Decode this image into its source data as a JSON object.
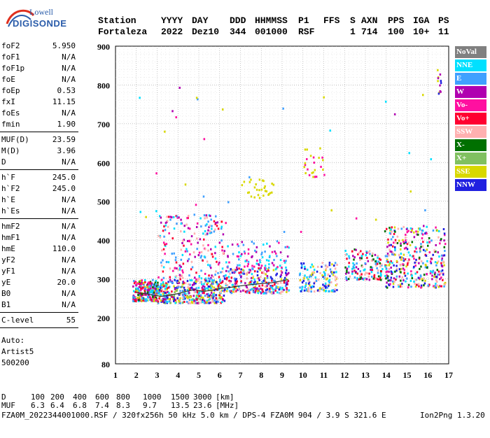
{
  "logo": {
    "line1": "Lowell",
    "line2": "DIGISONDE"
  },
  "header": {
    "labels": [
      "Station",
      "YYYY",
      "DAY",
      "DDD",
      "HHMMSS",
      "P1",
      "FFS",
      "S",
      "AXN",
      "PPS",
      "IGA",
      "PS"
    ],
    "values": [
      "Fortaleza",
      "2022",
      "Dez10",
      "344",
      "001000",
      "RSF",
      "",
      "1",
      "714",
      "100",
      "10+",
      "11"
    ]
  },
  "params_groups": [
    [
      {
        "k": "foF2",
        "v": "5.950"
      },
      {
        "k": "foF1",
        "v": "N/A"
      },
      {
        "k": "foF1p",
        "v": "N/A"
      },
      {
        "k": "foE",
        "v": "N/A"
      },
      {
        "k": "foEp",
        "v": "0.53"
      },
      {
        "k": "fxI",
        "v": "11.15"
      },
      {
        "k": "foEs",
        "v": "N/A"
      },
      {
        "k": "fmin",
        "v": "1.90"
      }
    ],
    [
      {
        "k": "MUF(D)",
        "v": "23.59"
      },
      {
        "k": "M(D)",
        "v": "3.96"
      },
      {
        "k": "D",
        "v": "N/A"
      }
    ],
    [
      {
        "k": "h`F",
        "v": "245.0"
      },
      {
        "k": "h`F2",
        "v": "245.0"
      },
      {
        "k": "h`E",
        "v": "N/A"
      },
      {
        "k": "h`Es",
        "v": "N/A"
      }
    ],
    [
      {
        "k": "hmF2",
        "v": "N/A"
      },
      {
        "k": "hmF1",
        "v": "N/A"
      },
      {
        "k": "hmE",
        "v": "110.0"
      },
      {
        "k": "yF2",
        "v": "N/A"
      },
      {
        "k": "yF1",
        "v": "N/A"
      },
      {
        "k": "yE",
        "v": "20.0"
      },
      {
        "k": "B0",
        "v": "N/A"
      },
      {
        "k": "B1",
        "v": "N/A"
      }
    ],
    [
      {
        "k": "C-level",
        "v": "55"
      }
    ]
  ],
  "auto": [
    "Auto:",
    "Artist5",
    "500200"
  ],
  "chart_data": {
    "type": "scatter",
    "xlabel": "",
    "ylabel": "",
    "xlim": [
      1,
      17
    ],
    "ylim": [
      80,
      900
    ],
    "x_ticks": [
      "1",
      "2",
      "3",
      "4",
      "5",
      "6",
      "7",
      "8",
      "9",
      "10",
      "11",
      "12",
      "13",
      "14",
      "15",
      "16",
      "17"
    ],
    "y_ticks": [
      "80",
      "200",
      "300",
      "400",
      "500",
      "600",
      "700",
      "800",
      "900"
    ],
    "grid": true,
    "legend_placement": "right",
    "legend": [
      {
        "name": "NoVal",
        "color": "#808080"
      },
      {
        "name": "NNE",
        "color": "#00e0ff"
      },
      {
        "name": "E",
        "color": "#40a0ff"
      },
      {
        "name": "W",
        "color": "#b000b0"
      },
      {
        "name": "Vo-",
        "color": "#ff10a0"
      },
      {
        "name": "Vo+",
        "color": "#ff0030"
      },
      {
        "name": "SSW",
        "color": "#ffb0b0"
      },
      {
        "name": "X-",
        "color": "#007000"
      },
      {
        "name": "X+",
        "color": "#80c060"
      },
      {
        "name": "SSE",
        "color": "#d8d800"
      },
      {
        "name": "NNW",
        "color": "#2020e0"
      }
    ],
    "trace_points": [
      [
        2.0,
        265
      ],
      [
        2.4,
        262
      ],
      [
        2.8,
        258
      ],
      [
        3.2,
        255
      ],
      [
        3.6,
        258
      ],
      [
        4.0,
        262
      ],
      [
        4.4,
        268
      ],
      [
        4.8,
        272
      ],
      [
        5.2,
        268
      ],
      [
        5.6,
        270
      ],
      [
        6.0,
        275
      ],
      [
        6.5,
        278
      ],
      [
        7.0,
        282
      ],
      [
        7.5,
        285
      ],
      [
        8.0,
        288
      ],
      [
        8.5,
        290
      ],
      [
        9.0,
        295
      ],
      [
        9.3,
        298
      ]
    ],
    "scatter_clusters": [
      {
        "x": [
          1.8,
          3.0
        ],
        "y": [
          245,
          300
        ],
        "n": 260,
        "colors": [
          "#ff0030",
          "#ff10a0",
          "#b000b0",
          "#40a0ff",
          "#d8d800",
          "#007000",
          "#00e0ff"
        ]
      },
      {
        "x": [
          3.0,
          6.2
        ],
        "y": [
          240,
          300
        ],
        "n": 420,
        "colors": [
          "#d8d800",
          "#40a0ff",
          "#00e0ff",
          "#ff0030",
          "#b000b0",
          "#ffb0b0",
          "#2020e0",
          "#80c060"
        ]
      },
      {
        "x": [
          3.0,
          6.2
        ],
        "y": [
          300,
          470
        ],
        "n": 220,
        "colors": [
          "#b000b0",
          "#ff10a0",
          "#ff0030",
          "#40a0ff",
          "#00e0ff",
          "#ffb0b0"
        ]
      },
      {
        "x": [
          6.2,
          9.3
        ],
        "y": [
          265,
          330
        ],
        "n": 280,
        "colors": [
          "#40a0ff",
          "#00e0ff",
          "#ffb0b0",
          "#d8d800",
          "#2020e0",
          "#b000b0",
          "#ff0030"
        ]
      },
      {
        "x": [
          6.2,
          9.3
        ],
        "y": [
          330,
          400
        ],
        "n": 90,
        "colors": [
          "#40a0ff",
          "#b000b0",
          "#00e0ff",
          "#ff10a0"
        ]
      },
      {
        "x": [
          9.8,
          11.6
        ],
        "y": [
          270,
          345
        ],
        "n": 150,
        "colors": [
          "#2020e0",
          "#40a0ff",
          "#00e0ff",
          "#d8d800",
          "#ffb0b0"
        ]
      },
      {
        "x": [
          12.0,
          13.8
        ],
        "y": [
          300,
          380
        ],
        "n": 140,
        "colors": [
          "#40a0ff",
          "#ffb0b0",
          "#b000b0",
          "#00e0ff",
          "#ff0030",
          "#007000"
        ]
      },
      {
        "x": [
          13.9,
          16.8
        ],
        "y": [
          280,
          440
        ],
        "n": 360,
        "colors": [
          "#b000b0",
          "#ffb0b0",
          "#40a0ff",
          "#00e0ff",
          "#ff0030",
          "#007000",
          "#2020e0",
          "#ff10a0",
          "#d8d800"
        ]
      },
      {
        "x": [
          7.0,
          8.6
        ],
        "y": [
          510,
          560
        ],
        "n": 30,
        "colors": [
          "#d8d800"
        ]
      },
      {
        "x": [
          10.0,
          11.0
        ],
        "y": [
          565,
          640
        ],
        "n": 25,
        "colors": [
          "#d8d800",
          "#ff10a0"
        ]
      },
      {
        "x": [
          2.0,
          16.5
        ],
        "y": [
          420,
          800
        ],
        "n": 40,
        "colors": [
          "#00e0ff",
          "#40a0ff",
          "#b000b0",
          "#d8d800",
          "#ff10a0"
        ]
      },
      {
        "x": [
          16.4,
          16.6
        ],
        "y": [
          780,
          860
        ],
        "n": 12,
        "colors": [
          "#b000b0",
          "#2020e0",
          "#d8d800"
        ]
      }
    ]
  },
  "footer": {
    "d_label": "D",
    "d_values": [
      "100",
      "200",
      "400",
      "600",
      "800",
      "1000",
      "1500",
      "3000",
      "[km]"
    ],
    "muf_label": "MUF",
    "muf_values": [
      "6.3",
      "6.4",
      "6.8",
      "7.4",
      "8.3",
      "9.7",
      "13.5",
      "23.6",
      "[MHz]"
    ],
    "file_line": "FZA0M_2022344001000.RSF / 320fx256h 50 kHz 5.0 km / DPS-4 FZA0M 904 / 3.9 S 321.6 E",
    "version": "Ion2Png 1.3.20"
  }
}
